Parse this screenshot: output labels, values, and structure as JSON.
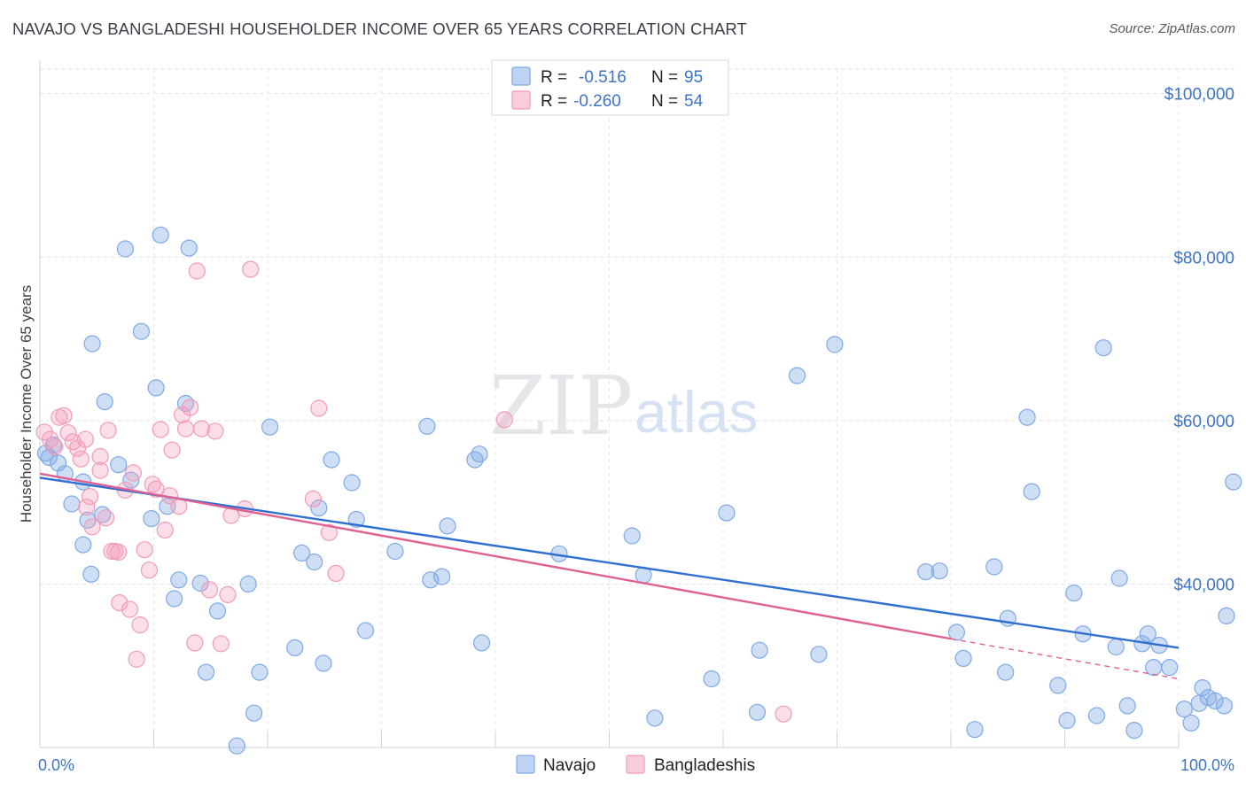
{
  "header": {
    "title": "NAVAJO VS BANGLADESHI HOUSEHOLDER INCOME OVER 65 YEARS CORRELATION CHART",
    "source": "Source: ZipAtlas.com"
  },
  "watermark": {
    "part1": "ZIP",
    "part2": "atlas"
  },
  "legend_top": [
    {
      "r_label": "R =",
      "r_value": "-0.516",
      "n_label": "N =",
      "n_value": "95",
      "color": "#7fa9e6"
    },
    {
      "r_label": "R =",
      "r_value": "-0.260",
      "n_label": "N =",
      "n_value": "54",
      "color": "#f29bb8"
    }
  ],
  "chart_data": {
    "type": "scatter",
    "title": "NAVAJO VS BANGLADESHI HOUSEHOLDER INCOME OVER 65 YEARS CORRELATION CHART",
    "ylabel": "Householder Income Over 65 years",
    "xlabel": "",
    "x_tick_labels": [
      "0.0%",
      "100.0%"
    ],
    "y_tick_labels": [
      "$40,000",
      "$60,000",
      "$80,000",
      "$100,000"
    ],
    "y_ticks": [
      40000,
      60000,
      80000,
      100000
    ],
    "xlim": [
      0,
      100
    ],
    "ylim": [
      20000,
      103000
    ],
    "grid": true,
    "legend_position": "bottom",
    "series": [
      {
        "name": "Navajo",
        "color": "#7fa9e6",
        "line_color": "#2f6fd0",
        "trend": {
          "x0": 0,
          "y0": 53000,
          "x1": 100,
          "y1": 32200
        },
        "points": [
          [
            0.5,
            56000
          ],
          [
            0.8,
            55500
          ],
          [
            1.2,
            57000
          ],
          [
            1.6,
            54800
          ],
          [
            2.2,
            53500
          ],
          [
            2.8,
            49800
          ],
          [
            3.8,
            52500
          ],
          [
            3.8,
            44800
          ],
          [
            4.2,
            47800
          ],
          [
            5.5,
            48500
          ],
          [
            4.5,
            41200
          ],
          [
            4.6,
            69400
          ],
          [
            5.7,
            62300
          ],
          [
            6.9,
            54600
          ],
          [
            7.5,
            81000
          ],
          [
            8.0,
            52700
          ],
          [
            8.9,
            70900
          ],
          [
            9.8,
            48000
          ],
          [
            10.2,
            64000
          ],
          [
            10.6,
            82700
          ],
          [
            11.2,
            49500
          ],
          [
            11.8,
            38200
          ],
          [
            12.2,
            40500
          ],
          [
            12.8,
            62100
          ],
          [
            13.1,
            81100
          ],
          [
            14.1,
            40100
          ],
          [
            14.6,
            29200
          ],
          [
            15.6,
            36700
          ],
          [
            17.3,
            20200
          ],
          [
            18.3,
            40000
          ],
          [
            18.8,
            24200
          ],
          [
            19.3,
            29200
          ],
          [
            20.2,
            59200
          ],
          [
            22.4,
            32200
          ],
          [
            23.0,
            43800
          ],
          [
            24.1,
            42700
          ],
          [
            24.5,
            49300
          ],
          [
            24.9,
            30300
          ],
          [
            25.6,
            55200
          ],
          [
            27.4,
            52400
          ],
          [
            27.8,
            47900
          ],
          [
            28.6,
            34300
          ],
          [
            31.2,
            44000
          ],
          [
            34.0,
            59300
          ],
          [
            34.3,
            40500
          ],
          [
            35.3,
            40900
          ],
          [
            35.8,
            47100
          ],
          [
            38.2,
            55200
          ],
          [
            38.6,
            55900
          ],
          [
            38.8,
            32800
          ],
          [
            45.6,
            43700
          ],
          [
            52.0,
            45900
          ],
          [
            53.0,
            41100
          ],
          [
            54.0,
            23600
          ],
          [
            59.0,
            28400
          ],
          [
            60.3,
            48700
          ],
          [
            63.2,
            31900
          ],
          [
            66.5,
            65500
          ],
          [
            68.4,
            31400
          ],
          [
            69.8,
            69300
          ],
          [
            77.8,
            41500
          ],
          [
            79.0,
            41600
          ],
          [
            80.5,
            34100
          ],
          [
            81.1,
            30900
          ],
          [
            82.1,
            22200
          ],
          [
            83.8,
            42100
          ],
          [
            84.8,
            29200
          ],
          [
            85.0,
            35800
          ],
          [
            86.7,
            60400
          ],
          [
            87.1,
            51300
          ],
          [
            89.4,
            27600
          ],
          [
            90.2,
            23300
          ],
          [
            90.8,
            38900
          ],
          [
            91.6,
            33900
          ],
          [
            92.8,
            23900
          ],
          [
            93.4,
            68900
          ],
          [
            94.5,
            32300
          ],
          [
            94.8,
            40700
          ],
          [
            95.5,
            25100
          ],
          [
            96.1,
            22100
          ],
          [
            96.8,
            32700
          ],
          [
            97.3,
            33900
          ],
          [
            97.8,
            29800
          ],
          [
            98.3,
            32500
          ],
          [
            99.2,
            29800
          ],
          [
            100.5,
            24700
          ],
          [
            101.1,
            23000
          ],
          [
            101.8,
            25400
          ],
          [
            102.1,
            27300
          ],
          [
            102.6,
            26100
          ],
          [
            103.2,
            25700
          ],
          [
            104.0,
            25100
          ],
          [
            104.2,
            36100
          ],
          [
            104.8,
            52500
          ],
          [
            63.0,
            24300
          ]
        ]
      },
      {
        "name": "Bangladeshis",
        "color": "#f29bb8",
        "line_color": "#e0608f",
        "trend": {
          "x0": 0,
          "y0": 53500,
          "x1": 80,
          "y1": 33300,
          "dash_x1": 100,
          "dash_y1": 28400
        },
        "points": [
          [
            0.4,
            58600
          ],
          [
            0.9,
            57700
          ],
          [
            1.3,
            56800
          ],
          [
            1.7,
            60400
          ],
          [
            2.1,
            60600
          ],
          [
            2.5,
            58500
          ],
          [
            2.9,
            57400
          ],
          [
            3.3,
            56600
          ],
          [
            3.6,
            55300
          ],
          [
            4.0,
            57700
          ],
          [
            4.1,
            49400
          ],
          [
            4.4,
            50700
          ],
          [
            4.6,
            47000
          ],
          [
            5.3,
            53900
          ],
          [
            5.3,
            55600
          ],
          [
            5.8,
            48100
          ],
          [
            6.0,
            58800
          ],
          [
            6.3,
            44000
          ],
          [
            6.6,
            44000
          ],
          [
            6.9,
            43900
          ],
          [
            7.0,
            37700
          ],
          [
            7.5,
            51500
          ],
          [
            7.9,
            36900
          ],
          [
            8.2,
            53600
          ],
          [
            8.5,
            30800
          ],
          [
            8.8,
            35000
          ],
          [
            9.2,
            44200
          ],
          [
            9.6,
            41700
          ],
          [
            9.9,
            52200
          ],
          [
            10.2,
            51600
          ],
          [
            10.6,
            58900
          ],
          [
            11.0,
            46600
          ],
          [
            11.4,
            50800
          ],
          [
            11.6,
            56400
          ],
          [
            12.2,
            49500
          ],
          [
            12.5,
            60700
          ],
          [
            12.8,
            59000
          ],
          [
            13.2,
            61600
          ],
          [
            13.6,
            32800
          ],
          [
            13.8,
            78300
          ],
          [
            14.2,
            59000
          ],
          [
            14.9,
            39300
          ],
          [
            15.4,
            58700
          ],
          [
            15.9,
            32700
          ],
          [
            16.5,
            38700
          ],
          [
            16.8,
            48400
          ],
          [
            18.0,
            49200
          ],
          [
            18.5,
            78500
          ],
          [
            24.0,
            50400
          ],
          [
            24.5,
            61500
          ],
          [
            25.4,
            46300
          ],
          [
            26.0,
            41300
          ],
          [
            40.8,
            60100
          ],
          [
            65.3,
            24100
          ]
        ]
      }
    ]
  },
  "legend_bottom": [
    {
      "label": "Navajo",
      "color": "#7fa9e6"
    },
    {
      "label": "Bangladeshis",
      "color": "#f29bb8"
    }
  ]
}
